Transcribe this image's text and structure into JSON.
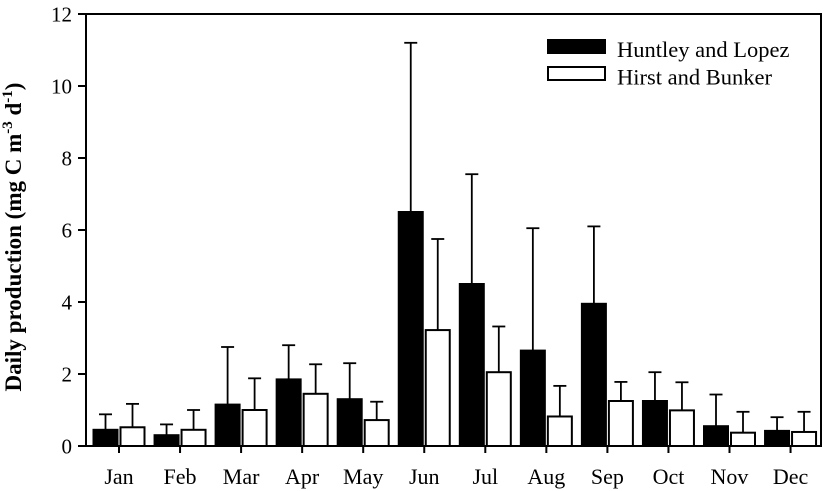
{
  "figure": {
    "background": "#ffffff",
    "axis_color": "#000000",
    "bar_fill_series1": "#000000",
    "bar_fill_series2": "#ffffff"
  },
  "chart_data": {
    "type": "bar",
    "title": "",
    "xlabel": "",
    "ylabel_text": "Daily production (mg C m-3 d-1)",
    "ylabel_parts": [
      {
        "text": "Daily production (mg C m",
        "sup": false
      },
      {
        "text": "-3",
        "sup": true
      },
      {
        "text": " d",
        "sup": false
      },
      {
        "text": "-1",
        "sup": true
      },
      {
        "text": ")",
        "sup": false
      }
    ],
    "categories": [
      "Jan",
      "Feb",
      "Mar",
      "Apr",
      "May",
      "Jun",
      "Jul",
      "Aug",
      "Sep",
      "Oct",
      "Nov",
      "Dec"
    ],
    "yticks": [
      0,
      2,
      4,
      6,
      8,
      10,
      12
    ],
    "ylim": [
      0,
      12
    ],
    "grid": false,
    "legend": {
      "position": "top-right",
      "entries": [
        {
          "label": "Huntley and Lopez",
          "fill": "#000000"
        },
        {
          "label": "Hirst and Bunker",
          "fill": "#ffffff"
        }
      ]
    },
    "series": [
      {
        "name": "Huntley and Lopez",
        "fill": "#000000",
        "values": [
          0.45,
          0.3,
          1.15,
          1.85,
          1.3,
          6.5,
          4.5,
          2.65,
          3.95,
          1.25,
          0.55,
          0.42
        ],
        "upper_errors": [
          0.43,
          0.3,
          1.6,
          0.95,
          1.0,
          4.7,
          3.05,
          3.4,
          2.15,
          0.8,
          0.88,
          0.38
        ]
      },
      {
        "name": "Hirst and Bunker",
        "fill": "#ffffff",
        "values": [
          0.52,
          0.45,
          1.0,
          1.45,
          0.72,
          3.22,
          2.05,
          0.82,
          1.25,
          0.99,
          0.37,
          0.39
        ],
        "upper_errors": [
          0.65,
          0.55,
          0.88,
          0.82,
          0.51,
          2.53,
          1.27,
          0.85,
          0.53,
          0.78,
          0.58,
          0.56
        ]
      }
    ]
  }
}
